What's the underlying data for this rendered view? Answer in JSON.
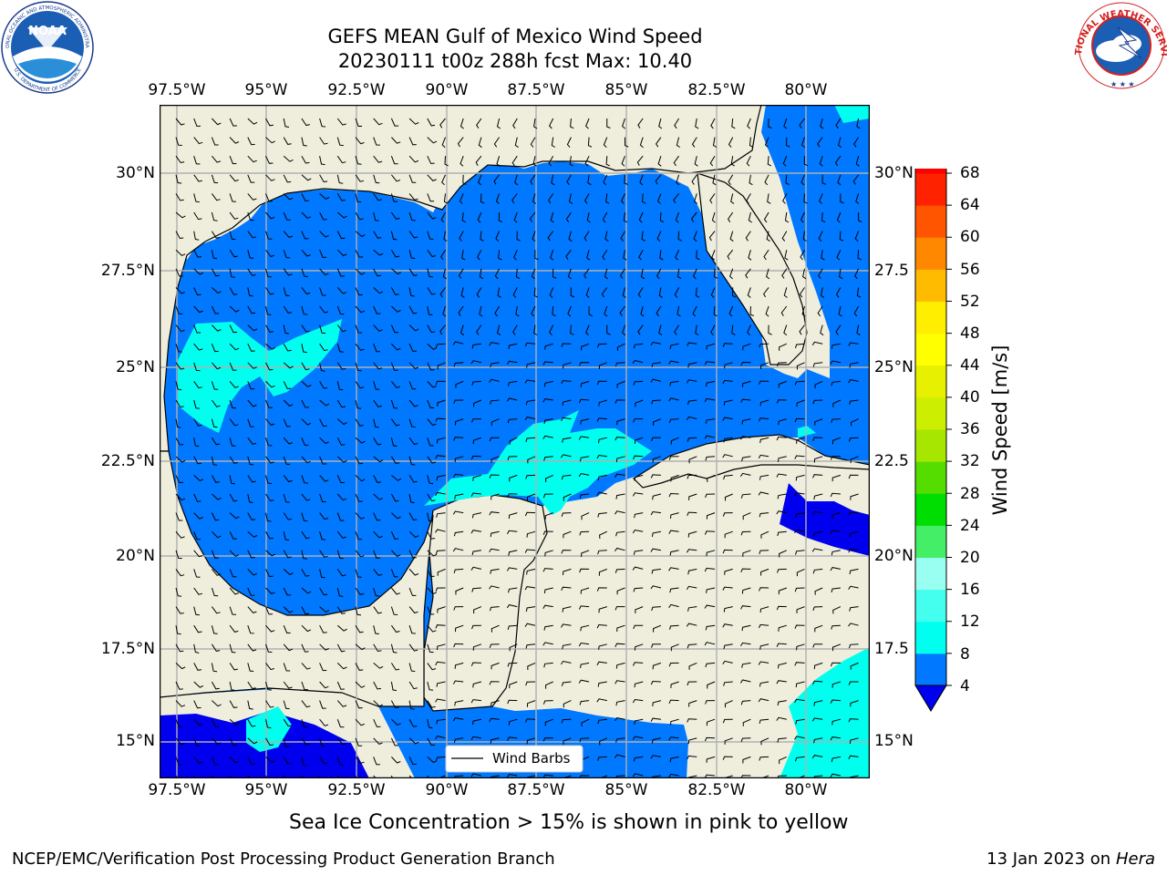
{
  "title_line1": "GEFS MEAN Gulf of Mexico Wind Speed",
  "title_line2": "20230111 t00z 288h fcst   Max: 10.40",
  "lon_ticks": [
    "97.5°W",
    "95°W",
    "92.5°W",
    "90°W",
    "87.5°W",
    "85°W",
    "82.5°W",
    "80°W"
  ],
  "lat_ticks": [
    "30°N",
    "27.5°N",
    "25°N",
    "22.5°N",
    "20°N",
    "17.5°N",
    "15°N"
  ],
  "lat_ticks_right": [
    "30°N",
    "27.5",
    "25°N",
    "22.5",
    "20°N",
    "17.5",
    "15°N"
  ],
  "colorbar": {
    "label": "Wind Speed [m/s]",
    "ticks": [
      "68",
      "64",
      "60",
      "56",
      "52",
      "48",
      "44",
      "40",
      "36",
      "32",
      "28",
      "24",
      "20",
      "16",
      "12",
      "8",
      "4"
    ],
    "colors": [
      "#0000ee",
      "#0078ff",
      "#00ffee",
      "#45ffee",
      "#99fff0",
      "#44ee66",
      "#00dd00",
      "#55dd00",
      "#a6e600",
      "#ccee00",
      "#e6f000",
      "#ffff00",
      "#ffee00",
      "#ffbb00",
      "#ff8800",
      "#ff5500",
      "#ff2200",
      "#ff0000"
    ]
  },
  "legend_label": "Wind Barbs",
  "sea_ice_note": "Sea Ice Concentration > 15% is shown in pink to yellow",
  "footer_left": "NCEP/EMC/Verification Post Processing Product Generation Branch",
  "footer_right_prefix": "13 Jan 2023 on ",
  "footer_right_machine": "Hera",
  "noaa_logo_text": "NOAA",
  "noaa_ring_text": "NATIONAL OCEANIC AND ATMOSPHERIC ADMINISTRATION",
  "noaa_ring_text_bottom": "U.S. DEPARTMENT OF COMMERCE",
  "nws_ring_text": "NATIONAL WEATHER SERVICE",
  "map_colors": {
    "land": "#efeedd",
    "ocean_4_8": "#0078ff",
    "ocean_8_12": "#00ffee",
    "ocean_0_4": "#0000ee"
  }
}
